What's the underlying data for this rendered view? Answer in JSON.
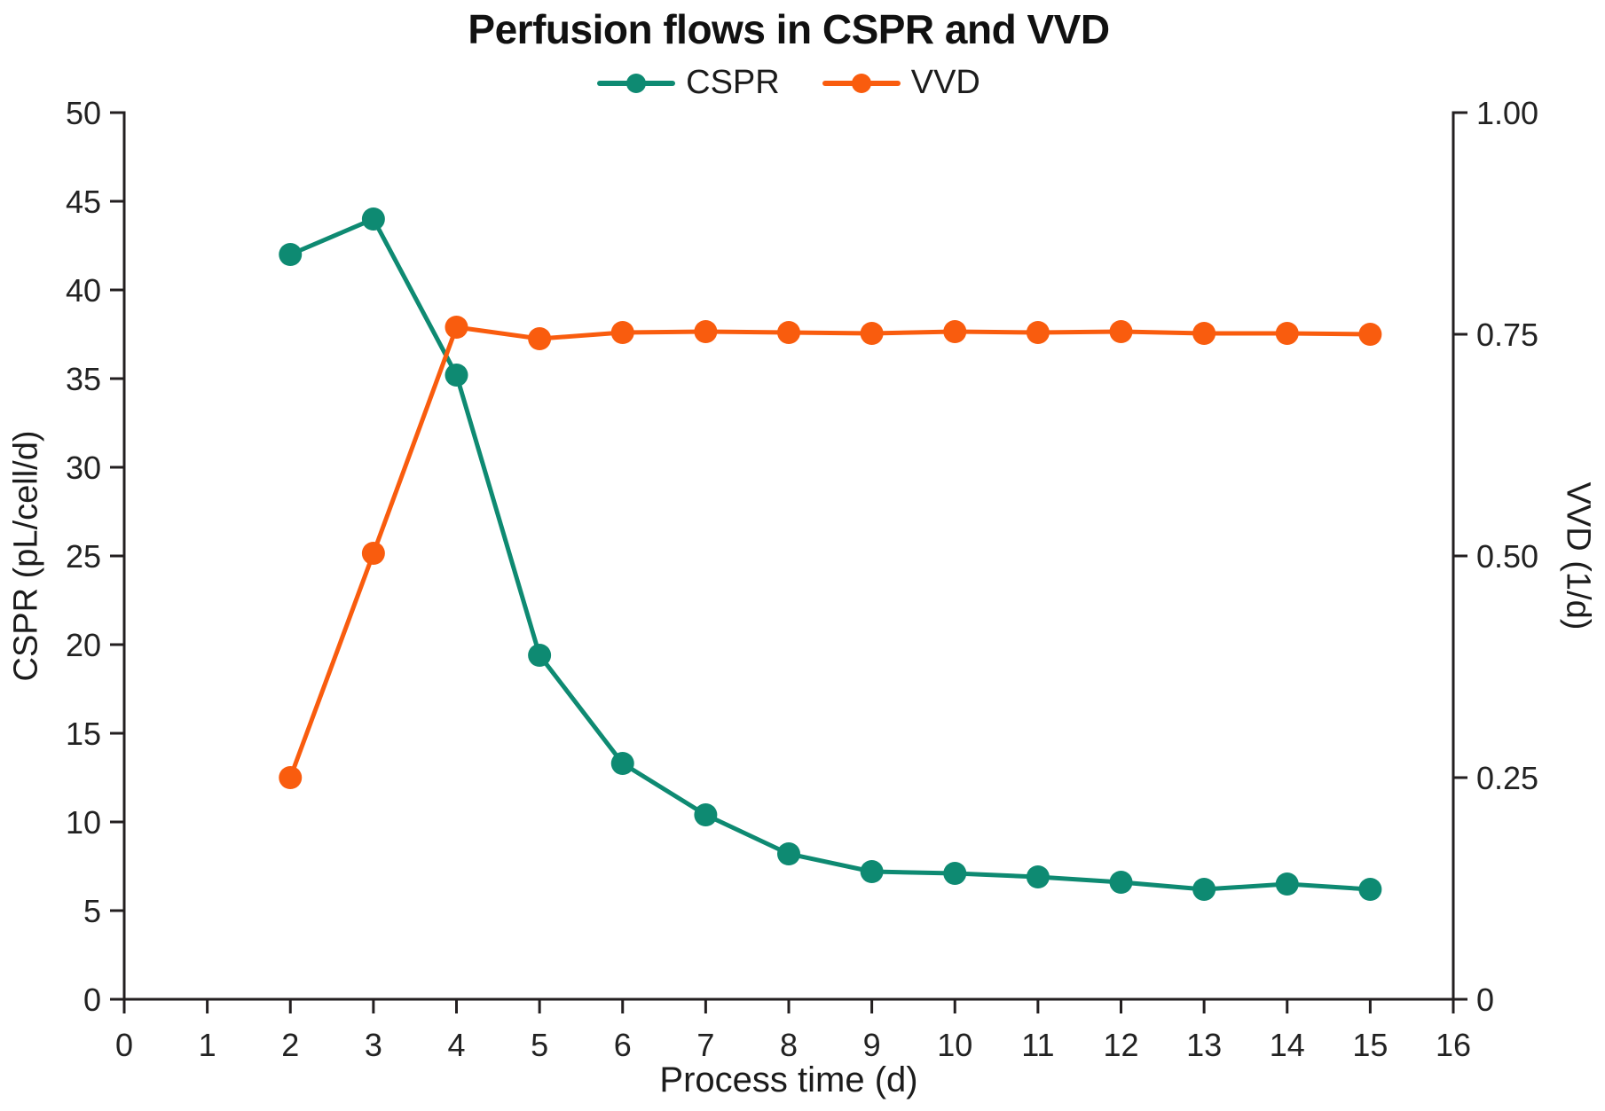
{
  "chart_data": {
    "type": "line",
    "title": "Perfusion flows in CSPR and VVD",
    "legend_position": "top-center",
    "grid": false,
    "x": [
      2,
      3,
      4,
      5,
      6,
      7,
      8,
      9,
      10,
      11,
      12,
      13,
      14,
      15
    ],
    "series": [
      {
        "name": "CSPR",
        "yaxis": "left",
        "color": "#0e8a72",
        "values": [
          42,
          44,
          35.2,
          19.4,
          13.3,
          10.4,
          8.2,
          7.2,
          7.1,
          6.9,
          6.6,
          6.2,
          6.5,
          6.2
        ]
      },
      {
        "name": "VVD",
        "yaxis": "right",
        "color": "#f95c0e",
        "values": [
          0.25,
          0.503,
          0.758,
          0.745,
          0.752,
          0.753,
          0.752,
          0.751,
          0.753,
          0.752,
          0.753,
          0.751,
          0.751,
          0.75
        ]
      }
    ],
    "axes": {
      "x": {
        "label": "Process time (d)",
        "min": 0,
        "max": 16,
        "ticks": [
          {
            "v": 0,
            "label": "0"
          },
          {
            "v": 1,
            "label": "1"
          },
          {
            "v": 2,
            "label": "2"
          },
          {
            "v": 3,
            "label": "3"
          },
          {
            "v": 4,
            "label": "4"
          },
          {
            "v": 5,
            "label": "5"
          },
          {
            "v": 6,
            "label": "6"
          },
          {
            "v": 7,
            "label": "7"
          },
          {
            "v": 8,
            "label": "8"
          },
          {
            "v": 9,
            "label": "9"
          },
          {
            "v": 10,
            "label": "10"
          },
          {
            "v": 11,
            "label": "11"
          },
          {
            "v": 12,
            "label": "12"
          },
          {
            "v": 13,
            "label": "13"
          },
          {
            "v": 14,
            "label": "14"
          },
          {
            "v": 15,
            "label": "15"
          },
          {
            "v": 16,
            "label": "16"
          }
        ]
      },
      "left": {
        "label": "CSPR (pL/cell/d)",
        "min": 0,
        "max": 50,
        "ticks": [
          {
            "v": 0,
            "label": "0"
          },
          {
            "v": 5,
            "label": "5"
          },
          {
            "v": 10,
            "label": "10"
          },
          {
            "v": 15,
            "label": "15"
          },
          {
            "v": 20,
            "label": "20"
          },
          {
            "v": 25,
            "label": "25"
          },
          {
            "v": 30,
            "label": "30"
          },
          {
            "v": 35,
            "label": "35"
          },
          {
            "v": 40,
            "label": "40"
          },
          {
            "v": 45,
            "label": "45"
          },
          {
            "v": 50,
            "label": "50"
          }
        ]
      },
      "right": {
        "label": "VVD (1/d)",
        "min": 0,
        "max": 1,
        "ticks": [
          {
            "v": 0,
            "label": "0"
          },
          {
            "v": 0.25,
            "label": "0.25"
          },
          {
            "v": 0.5,
            "label": "0.50"
          },
          {
            "v": 0.75,
            "label": "0.75"
          },
          {
            "v": 1,
            "label": "1.00"
          }
        ]
      }
    },
    "colors": {
      "axis": "#231f20",
      "tick_text": "#222222",
      "title_text": "#111111"
    }
  }
}
